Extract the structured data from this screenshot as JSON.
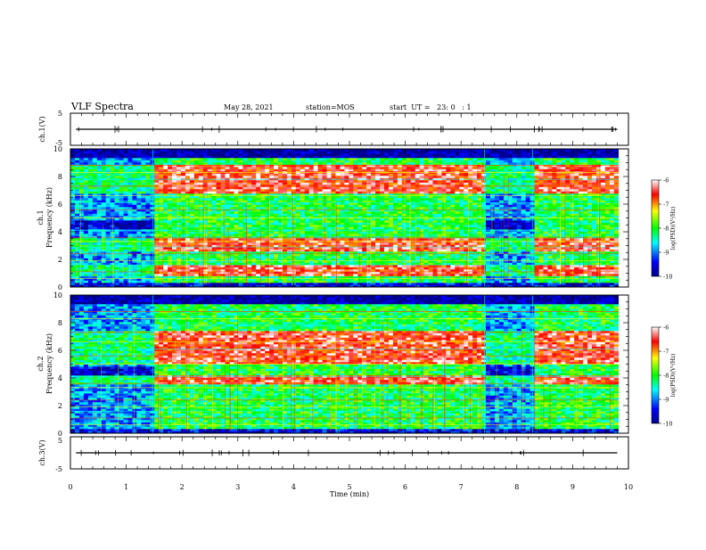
{
  "header": {
    "title": "VLF Spectra",
    "date": "May 28, 2021",
    "station": "station=MOS",
    "start": "start  UT =   23: 0   : 1"
  },
  "panels": {
    "ch1v_label": "ch.1(V)",
    "ch1_label": "ch.1",
    "ch2_label": "ch.2",
    "freq_label": "Frequency (kHz)",
    "ch3v_label": "ch.3(V)",
    "colorbar_label": "log(PSD)(V²/Hz)"
  },
  "chart_data": {
    "type": "heatmap",
    "title": "VLF Spectra",
    "xlabel": "Time (min)",
    "ylabel": "Frequency (kHz)",
    "xlim": [
      0,
      10
    ],
    "x_ticks": [
      "0",
      "1",
      "2",
      "3",
      "4",
      "5",
      "6",
      "7",
      "8",
      "9",
      "10"
    ],
    "ylim": [
      0,
      10
    ],
    "y_ticks": [
      "0",
      "2",
      "4",
      "6",
      "8",
      "10"
    ],
    "volt_ylim": [
      -5,
      5
    ],
    "volt_ticks": [
      "5",
      "-5"
    ],
    "colorbar": {
      "range": [
        -10,
        -6
      ],
      "ticks": [
        "-6",
        "-7",
        "-8",
        "-9",
        "-10"
      ],
      "colors": [
        "#00008b",
        "#0000ff",
        "#00ffff",
        "#00ff00",
        "#ffff00",
        "#ff0000",
        "#ffffff"
      ]
    },
    "segments_min": [
      0,
      1.48,
      7.42,
      8.28,
      9.82
    ],
    "sweep_end_min": 9.82,
    "ch1_intense_khz": [
      [
        0.8,
        1.6
      ],
      [
        2.6,
        3.6
      ],
      [
        6.8,
        8.8
      ]
    ],
    "ch2_intense_khz": [
      [
        3.6,
        4.2
      ],
      [
        5.0,
        7.4
      ]
    ]
  }
}
